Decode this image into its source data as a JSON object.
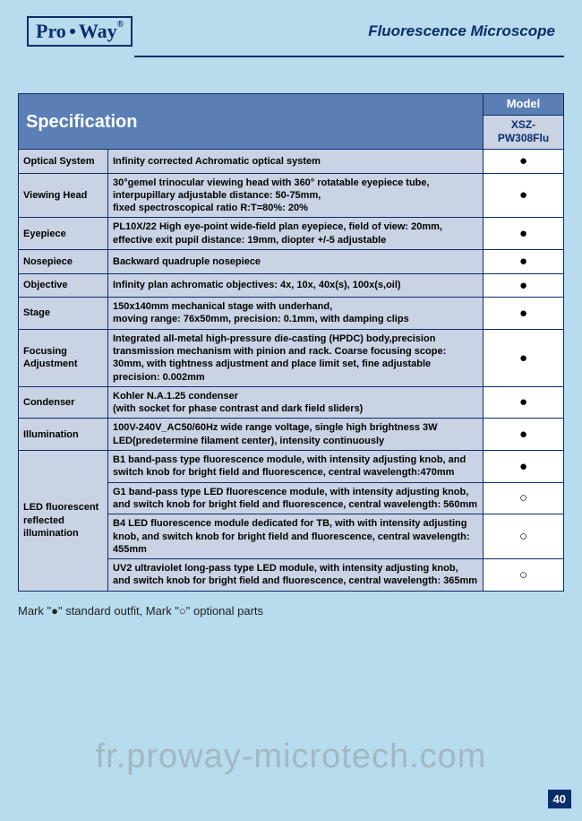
{
  "brand": {
    "part1": "Pro",
    "part2": "Way",
    "reg": "®"
  },
  "product_title": "Fluorescence Microscope",
  "spec_title": "Specification",
  "model_label": "Model",
  "model_name": "XSZ-PW308Flu",
  "marks": {
    "filled": "●",
    "open": "○"
  },
  "rows": [
    {
      "label": "Optical System",
      "desc": "Infinity corrected Achromatic optical system",
      "mark": "●",
      "rowspan": 1
    },
    {
      "label": "Viewing Head",
      "desc": "30°gemel trinocular viewing head with 360° rotatable eyepiece tube, interpupillary adjustable distance: 50-75mm,\nfixed spectroscopical ratio R:T=80%: 20%",
      "mark": "●",
      "rowspan": 1
    },
    {
      "label": "Eyepiece",
      "desc": "PL10X/22 High eye-point wide-field plan eyepiece, field of view: 20mm, effective exit pupil distance: 19mm, diopter +/-5 adjustable",
      "mark": "●",
      "rowspan": 1
    },
    {
      "label": "Nosepiece",
      "desc": "Backward quadruple nosepiece",
      "mark": "●",
      "rowspan": 1
    },
    {
      "label": "Objective",
      "desc": "Infinity plan achromatic objectives: 4x, 10x, 40x(s), 100x(s,oil)",
      "mark": "●",
      "rowspan": 1
    },
    {
      "label": "Stage",
      "desc": "150x140mm mechanical stage with underhand,\nmoving range: 76x50mm, precision: 0.1mm, with damping clips",
      "mark": "●",
      "rowspan": 1
    },
    {
      "label": "Focusing Adjustment",
      "desc": "Integrated all-metal high-pressure die-casting (HPDC) body,precision transmission mechanism with pinion and rack. Coarse focusing scope: 30mm, with tightness adjustment and place limit set, fine adjustable precision: 0.002mm",
      "mark": "●",
      "rowspan": 1
    },
    {
      "label": "Condenser",
      "desc": "Kohler N.A.1.25 condenser\n (with socket for phase contrast and dark field sliders)",
      "mark": "●",
      "rowspan": 1
    },
    {
      "label": "Illumination",
      "desc": "100V-240V_AC50/60Hz wide range voltage, single high brightness 3W LED(predetermine filament center), intensity continuously",
      "mark": "●",
      "rowspan": 1
    }
  ],
  "led_group": {
    "label": "LED fluorescent reflected illumination",
    "items": [
      {
        "desc": "B1 band-pass type fluorescence module, with intensity adjusting knob, and switch knob for bright field and fluorescence, central wavelength:470mm",
        "mark": "●"
      },
      {
        "desc": "G1 band-pass type LED fluorescence module, with intensity adjusting knob, and switch knob for bright field and fluorescence, central wavelength: 560mm",
        "mark": "○"
      },
      {
        "desc": "B4 LED fluorescence module dedicated for TB, with with intensity adjusting knob, and switch knob for bright field and fluorescence, central wavelength: 455mm",
        "mark": "○"
      },
      {
        "desc": "UV2 ultraviolet long-pass type LED module, with intensity adjusting knob, and switch knob for bright field and fluorescence, central wavelength: 365mm",
        "mark": "○"
      }
    ]
  },
  "legend": "Mark \"●\" standard outfit,  Mark \"○\" optional parts",
  "watermark": "fr.proway-microtech.com",
  "page": "40"
}
